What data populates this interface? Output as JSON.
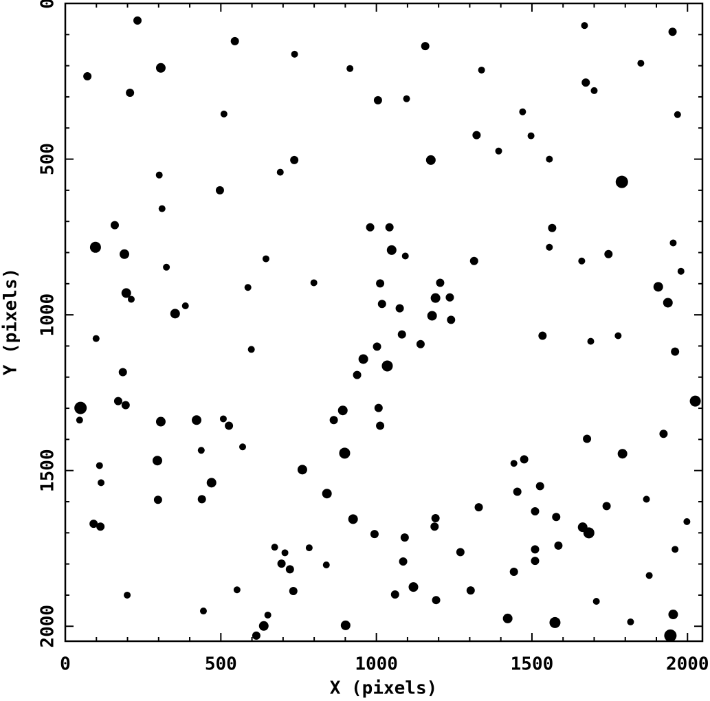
{
  "chart_data": {
    "type": "scatter",
    "xlabel": "X (pixels)",
    "ylabel": "Y (pixels)",
    "xlim": [
      0,
      2048
    ],
    "ylim": [
      2048,
      0
    ],
    "xticks": [
      0,
      500,
      1000,
      1500,
      2000
    ],
    "yticks": [
      0,
      500,
      1000,
      1500,
      2000
    ],
    "xminorticks": [
      100,
      200,
      300,
      400,
      600,
      700,
      800,
      900,
      1100,
      1200,
      1300,
      1400,
      1600,
      1700,
      1800,
      1900
    ],
    "yminorticks": [
      100,
      200,
      300,
      400,
      600,
      700,
      800,
      900,
      1100,
      1200,
      1300,
      1400,
      1600,
      1700,
      1800,
      1900
    ],
    "series": [
      {
        "color": "#000000",
        "x": [
          49,
          97,
          190,
          196,
          307,
          296,
          298,
          353,
          422,
          470,
          439,
          307,
          71,
          232,
          208,
          545,
          737,
          691,
          510,
          497,
          736,
          1175,
          1789,
          1906,
          1937,
          2025,
          1791,
          1683,
          1663,
          1574,
          1954,
          1945,
          1422,
          1119,
          901,
          638,
          614,
          1035,
          958,
          898,
          925,
          841,
          762,
          892,
          863,
          1049,
          1179,
          1190,
          1205,
          1236,
          1240,
          1018,
          1012,
          1075,
          1002,
          1142,
          1082,
          1007,
          1012,
          938,
          1042,
          980,
          1093,
          1314,
          1322,
          1475,
          1453,
          1526,
          1510,
          1442,
          1329,
          1187,
          1086,
          1091,
          1060,
          722,
          733,
          695,
          706,
          673,
          570,
          526,
          508,
          437,
          110,
          115,
          91,
          113,
          46,
          185,
          170,
          194,
          159,
          212,
          99,
          386,
          325,
          311,
          302,
          598,
          645,
          587,
          799,
          1005,
          915,
          1097,
          1157,
          1338,
          1470,
          1497,
          1393,
          1556,
          1673,
          1700,
          1669,
          1952,
          1746,
          1660,
          1565,
          1556,
          1534,
          1677,
          1923,
          1960,
          1954,
          1777,
          1689,
          1740,
          1578,
          1585,
          1510,
          1442,
          1270,
          1303,
          1192,
          1510,
          994,
          1190,
          839,
          784,
          651,
          552,
          444,
          199,
          1877,
          1817,
          1707,
          1960,
          1868,
          1998,
          1979,
          1968,
          1850
        ],
        "y": [
          1299,
          783,
          805,
          930,
          1343,
          1468,
          1594,
          996,
          1338,
          1539,
          1592,
          207,
          234,
          55,
          287,
          121,
          163,
          542,
          355,
          600,
          503,
          503,
          573,
          910,
          961,
          1277,
          1446,
          1700,
          1682,
          1988,
          1962,
          2030,
          1975,
          1874,
          1997,
          1999,
          2030,
          1164,
          1142,
          1444,
          1656,
          1574,
          1497,
          1307,
          1338,
          792,
          1003,
          946,
          897,
          944,
          1016,
          965,
          899,
          979,
          1102,
          1094,
          1063,
          1299,
          1356,
          1193,
          719,
          719,
          811,
          827,
          423,
          1464,
          1568,
          1550,
          1631,
          1477,
          1618,
          1680,
          1792,
          1715,
          1898,
          1817,
          1887,
          1799,
          1764,
          1746,
          1424,
          1356,
          1334,
          1435,
          1484,
          1539,
          1671,
          1680,
          1338,
          1184,
          1277,
          1290,
          712,
          950,
          1076,
          971,
          847,
          659,
          551,
          1111,
          820,
          912,
          897,
          311,
          209,
          306,
          137,
          214,
          348,
          425,
          474,
          500,
          254,
          280,
          71,
          91,
          805,
          827,
          721,
          783,
          1067,
          1398,
          1382,
          1118,
          769,
          1067,
          1085,
          1614,
          1649,
          1741,
          1753,
          1825,
          1762,
          1885,
          1916,
          1790,
          1704,
          1653,
          1803,
          1748,
          1964,
          1883,
          1951,
          1900,
          1837,
          1986,
          1920,
          1753,
          1592,
          1664,
          860,
          357,
          192
        ],
        "sizes": [
          9,
          8,
          7,
          7,
          7,
          7,
          6,
          7,
          7,
          7,
          6,
          7,
          6,
          6,
          6,
          6,
          5,
          5,
          5,
          6,
          6,
          7,
          9,
          7,
          7,
          8,
          7,
          8,
          7,
          8,
          7,
          9,
          7,
          7,
          7,
          7,
          6,
          8,
          7,
          8,
          7,
          7,
          7,
          7,
          6,
          7,
          7,
          7,
          6,
          6,
          6,
          6,
          6,
          6,
          6,
          6,
          6,
          6,
          6,
          6,
          6,
          6,
          5,
          6,
          6,
          6,
          6,
          6,
          6,
          5,
          6,
          6,
          6,
          6,
          6,
          6,
          6,
          6,
          5,
          5,
          5,
          6,
          5,
          5,
          5,
          5,
          6,
          6,
          5,
          6,
          6,
          6,
          6,
          5,
          5,
          5,
          5,
          5,
          5,
          5,
          5,
          5,
          5,
          6,
          5,
          5,
          6,
          5,
          5,
          5,
          5,
          5,
          6,
          5,
          5,
          6,
          6,
          5,
          6,
          5,
          6,
          6,
          6,
          6,
          5,
          5,
          5,
          6,
          6,
          6,
          6,
          6,
          6,
          6,
          6,
          6,
          6,
          6,
          5,
          5,
          5,
          5,
          5,
          5,
          5,
          5,
          5,
          5,
          5,
          5,
          5,
          5,
          5
        ]
      }
    ]
  }
}
